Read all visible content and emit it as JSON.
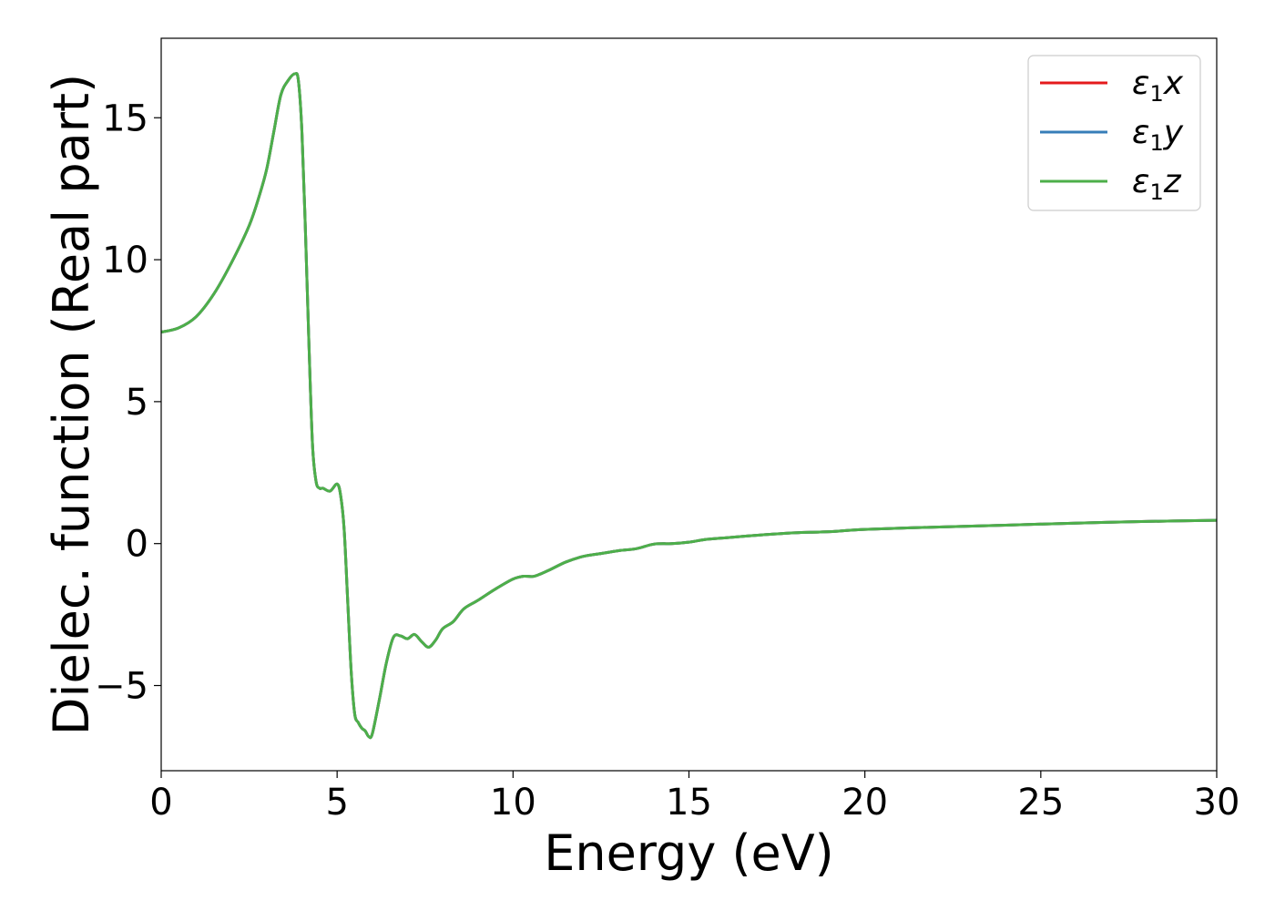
{
  "chart_data": {
    "type": "line",
    "xlabel": "Energy (eV)",
    "ylabel": "Dielec. function (Real part)",
    "xlim": [
      0,
      30
    ],
    "ylim": [
      -8,
      17.8
    ],
    "xticks": [
      0,
      5,
      10,
      15,
      20,
      25,
      30
    ],
    "xtick_labels": [
      "0",
      "5",
      "10",
      "15",
      "20",
      "25",
      "30"
    ],
    "yticks": [
      -5,
      0,
      5,
      10,
      15
    ],
    "ytick_labels": [
      "−5",
      "0",
      "5",
      "10",
      "15"
    ],
    "grid": false,
    "legend_position": "top-right",
    "x": [
      0,
      0.5,
      1.0,
      1.5,
      2.0,
      2.5,
      2.8,
      3.0,
      3.2,
      3.4,
      3.6,
      3.8,
      3.9,
      4.0,
      4.1,
      4.2,
      4.3,
      4.4,
      4.5,
      4.6,
      4.8,
      5.0,
      5.1,
      5.2,
      5.3,
      5.4,
      5.5,
      5.6,
      5.7,
      5.8,
      5.9,
      6.0,
      6.2,
      6.4,
      6.6,
      6.8,
      7.0,
      7.2,
      7.4,
      7.6,
      7.8,
      8.0,
      8.3,
      8.6,
      9.0,
      9.5,
      10.0,
      10.3,
      10.6,
      11.0,
      11.5,
      12.0,
      12.5,
      13.0,
      13.5,
      14.0,
      14.5,
      15.0,
      15.5,
      16.0,
      17.0,
      18.0,
      19.0,
      20.0,
      22.0,
      24.0,
      26.0,
      28.0,
      30.0
    ],
    "series": [
      {
        "name": "x",
        "color": "#e41a1c",
        "values": [
          7.45,
          7.6,
          8.0,
          8.8,
          9.9,
          11.2,
          12.3,
          13.2,
          14.5,
          15.8,
          16.3,
          16.55,
          16.3,
          14.5,
          11.0,
          7.0,
          3.5,
          2.2,
          1.95,
          1.95,
          1.85,
          2.1,
          1.7,
          0.5,
          -2.0,
          -4.5,
          -6.0,
          -6.3,
          -6.5,
          -6.6,
          -6.8,
          -6.7,
          -5.5,
          -4.2,
          -3.3,
          -3.25,
          -3.35,
          -3.2,
          -3.45,
          -3.65,
          -3.4,
          -3.0,
          -2.75,
          -2.3,
          -2.0,
          -1.6,
          -1.25,
          -1.15,
          -1.15,
          -0.95,
          -0.65,
          -0.45,
          -0.35,
          -0.25,
          -0.18,
          -0.02,
          0.0,
          0.05,
          0.15,
          0.2,
          0.3,
          0.38,
          0.42,
          0.5,
          0.58,
          0.65,
          0.72,
          0.78,
          0.82
        ]
      },
      {
        "name": "y",
        "color": "#377eb8",
        "values": [
          7.45,
          7.6,
          8.0,
          8.8,
          9.9,
          11.2,
          12.3,
          13.2,
          14.5,
          15.8,
          16.3,
          16.55,
          16.3,
          14.5,
          11.0,
          7.0,
          3.5,
          2.2,
          1.95,
          1.95,
          1.85,
          2.1,
          1.7,
          0.5,
          -2.0,
          -4.5,
          -6.0,
          -6.3,
          -6.5,
          -6.6,
          -6.8,
          -6.7,
          -5.5,
          -4.2,
          -3.3,
          -3.25,
          -3.35,
          -3.2,
          -3.45,
          -3.65,
          -3.4,
          -3.0,
          -2.75,
          -2.3,
          -2.0,
          -1.6,
          -1.25,
          -1.15,
          -1.15,
          -0.95,
          -0.65,
          -0.45,
          -0.35,
          -0.25,
          -0.18,
          -0.02,
          0.0,
          0.05,
          0.15,
          0.2,
          0.3,
          0.38,
          0.42,
          0.5,
          0.58,
          0.65,
          0.72,
          0.78,
          0.82
        ]
      },
      {
        "name": "z",
        "color": "#4daf4a",
        "values": [
          7.45,
          7.6,
          8.0,
          8.8,
          9.9,
          11.2,
          12.3,
          13.2,
          14.5,
          15.8,
          16.3,
          16.55,
          16.3,
          14.5,
          11.0,
          7.0,
          3.5,
          2.2,
          1.95,
          1.95,
          1.85,
          2.1,
          1.7,
          0.5,
          -2.0,
          -4.5,
          -6.0,
          -6.3,
          -6.5,
          -6.6,
          -6.8,
          -6.7,
          -5.5,
          -4.2,
          -3.3,
          -3.25,
          -3.35,
          -3.2,
          -3.45,
          -3.65,
          -3.4,
          -3.0,
          -2.75,
          -2.3,
          -2.0,
          -1.6,
          -1.25,
          -1.15,
          -1.15,
          -0.95,
          -0.65,
          -0.45,
          -0.35,
          -0.25,
          -0.18,
          -0.02,
          0.0,
          0.05,
          0.15,
          0.2,
          0.3,
          0.38,
          0.42,
          0.5,
          0.58,
          0.65,
          0.72,
          0.78,
          0.82
        ]
      }
    ],
    "legend": [
      {
        "symbol": "ε",
        "subscript": "1",
        "suffix": "x"
      },
      {
        "symbol": "ε",
        "subscript": "1",
        "suffix": "y"
      },
      {
        "symbol": "ε",
        "subscript": "1",
        "suffix": "z"
      }
    ]
  }
}
